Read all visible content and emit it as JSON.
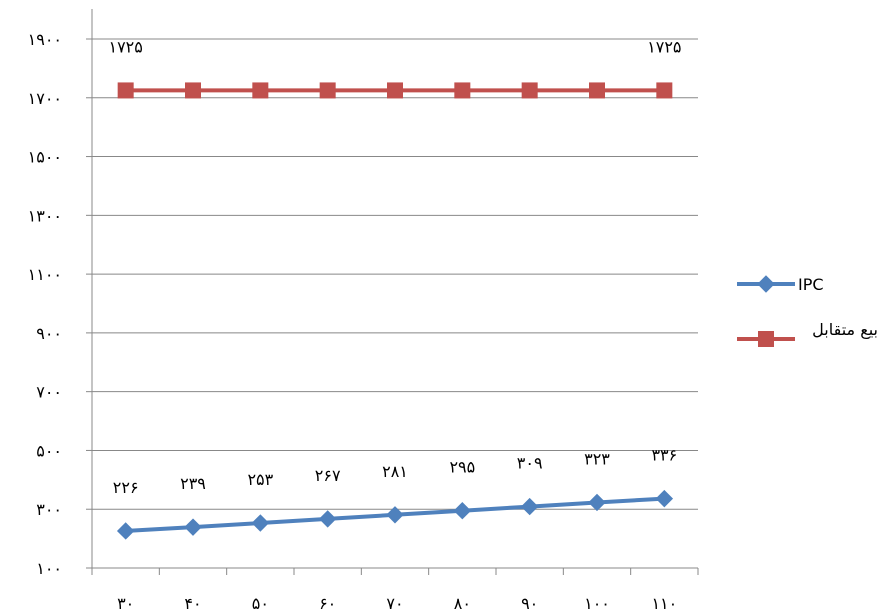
{
  "chart_data": {
    "type": "line",
    "x": [
      "۳۰",
      "۴۰",
      "۵۰",
      "۶۰",
      "۷۰",
      "۸۰",
      "۹۰",
      "۱۰۰",
      "۱۱۰"
    ],
    "ylim": [
      100,
      1900
    ],
    "yticks": [
      100,
      300,
      500,
      700,
      900,
      1100,
      1300,
      1500,
      1700,
      1900
    ],
    "ytick_labels": [
      "۱۰۰",
      "۳۰۰",
      "۵۰۰",
      "۷۰۰",
      "۹۰۰",
      "۱۱۰۰",
      "۱۳۰۰",
      "۱۵۰۰",
      "۱۷۰۰",
      "۱۹۰۰"
    ],
    "grid": true,
    "legend": "right",
    "series": [
      {
        "name": "IPC",
        "color": "#4F81BD",
        "marker": "diamond",
        "values": [
          226,
          239,
          253,
          267,
          281,
          295,
          309,
          323,
          336
        ],
        "labels": [
          "۲۲۶",
          "۲۳۹",
          "۲۵۳",
          "۲۶۷",
          "۲۸۱",
          "۲۹۵",
          "۳۰۹",
          "۳۲۳",
          "۳۳۶"
        ]
      },
      {
        "name": "بیع متقابل",
        "color": "#C0504D",
        "marker": "square",
        "values": [
          1725,
          1725,
          1725,
          1725,
          1725,
          1725,
          1725,
          1725,
          1725
        ],
        "labels": [
          "۱۷۲۵",
          "",
          "",
          "",
          "",
          "",
          "",
          "",
          "۱۷۲۵"
        ]
      }
    ]
  }
}
